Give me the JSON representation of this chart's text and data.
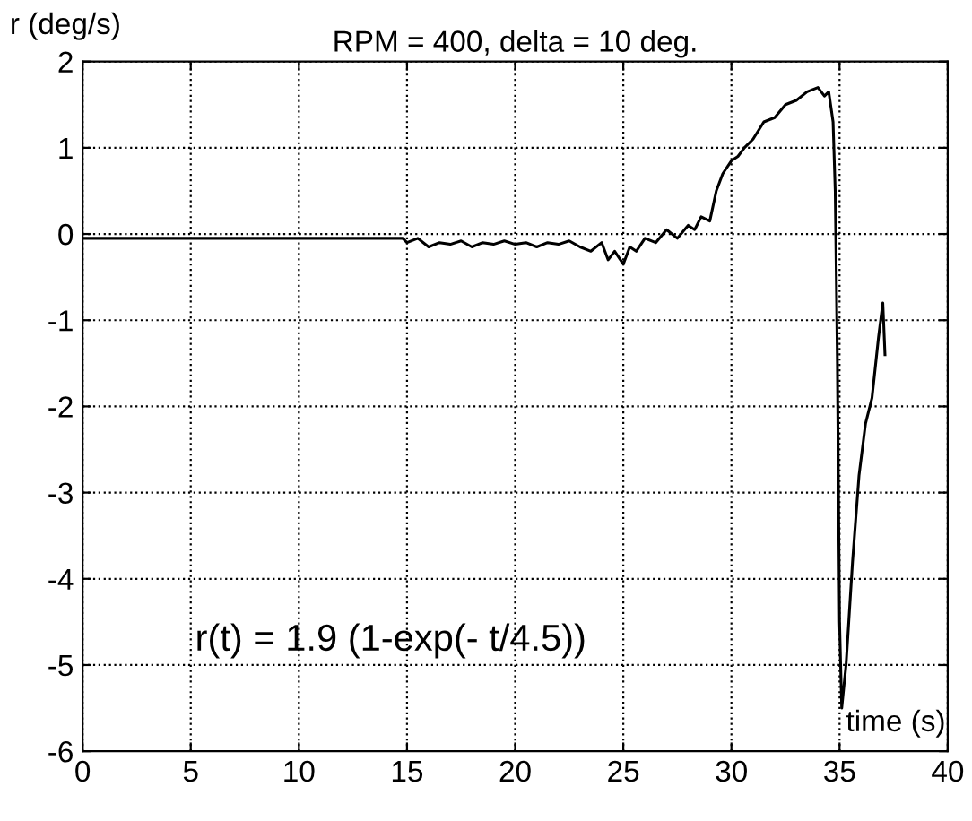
{
  "chart_data": {
    "type": "line",
    "title": "RPM = 400, delta = 10 deg.",
    "ylabel": "r (deg/s)",
    "xlabel": "time (s)",
    "annotations": [
      "r(t) = 1.9 (1-exp(- t/4.5))"
    ],
    "series": [
      {
        "color": "#000000",
        "x": [
          0,
          5,
          10,
          14.8,
          15,
          15.5,
          16,
          16.5,
          17,
          17.5,
          18,
          18.5,
          19,
          19.5,
          20,
          20.5,
          21,
          21.5,
          22,
          22.5,
          23,
          23.5,
          24,
          24.3,
          24.6,
          25,
          25.3,
          25.6,
          26,
          26.5,
          27,
          27.5,
          28,
          28.3,
          28.6,
          29,
          29.3,
          29.6,
          30,
          30.3,
          30.6,
          31,
          31.5,
          32,
          32.5,
          33,
          33.5,
          34,
          34.3,
          34.5,
          34.7,
          34.8,
          34.9,
          35.0,
          35.1,
          35.3,
          35.6,
          35.9,
          36.2,
          36.5,
          36.8,
          37,
          37.1
        ],
        "values": [
          -0.05,
          -0.05,
          -0.05,
          -0.05,
          -0.1,
          -0.05,
          -0.15,
          -0.1,
          -0.12,
          -0.08,
          -0.15,
          -0.1,
          -0.12,
          -0.08,
          -0.12,
          -0.1,
          -0.15,
          -0.1,
          -0.12,
          -0.08,
          -0.15,
          -0.2,
          -0.1,
          -0.3,
          -0.2,
          -0.35,
          -0.15,
          -0.2,
          -0.05,
          -0.1,
          0.05,
          -0.05,
          0.1,
          0.05,
          0.2,
          0.15,
          0.5,
          0.7,
          0.85,
          0.9,
          1.0,
          1.1,
          1.3,
          1.35,
          1.5,
          1.55,
          1.65,
          1.7,
          1.6,
          1.65,
          1.3,
          0.5,
          -1.5,
          -4.5,
          -5.5,
          -5.0,
          -3.8,
          -2.8,
          -2.2,
          -1.9,
          -1.2,
          -0.8,
          -1.4
        ]
      }
    ],
    "xlim": [
      0,
      40
    ],
    "ylim": [
      -6,
      2
    ],
    "xticks": [
      0,
      5,
      10,
      15,
      20,
      25,
      30,
      35,
      40
    ],
    "yticks": [
      -6,
      -5,
      -4,
      -3,
      -2,
      -1,
      0,
      1,
      2
    ],
    "grid": true,
    "legend": false,
    "marker": "none",
    "line_style": "solid"
  }
}
